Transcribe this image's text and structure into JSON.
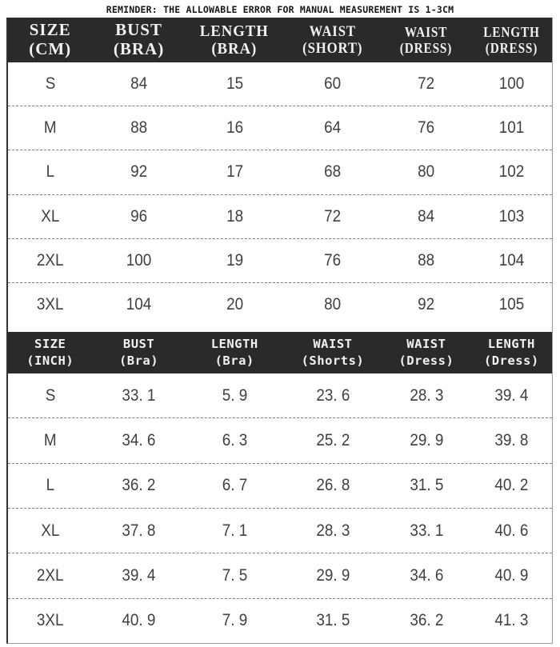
{
  "reminder": "REMINDER: THE ALLOWABLE ERROR FOR MANUAL MEASUREMENT IS 1-3CM",
  "colors": {
    "header_bg": "#2a2a2a",
    "header_text": "#f2f2f2",
    "body_text": "#404040",
    "divider_dash": "#7d7d7d",
    "border": "#9a9a9a",
    "background": "#ffffff"
  },
  "tables": [
    {
      "id": "cm",
      "columns": [
        {
          "line1": "SIZE",
          "line2": "(CM)"
        },
        {
          "line1": "BUST",
          "line2": "(BRA)"
        },
        {
          "line1": "LENGTH",
          "line2": "(BRA)"
        },
        {
          "line1": "WAIST",
          "line2": "(SHORT)"
        },
        {
          "line1": "WAIST",
          "line2": "(DRESS)"
        },
        {
          "line1": "LENGTH",
          "line2": "(DRESS)"
        }
      ],
      "rows": [
        [
          "S",
          "84",
          "15",
          "60",
          "72",
          "100"
        ],
        [
          "M",
          "88",
          "16",
          "64",
          "76",
          "101"
        ],
        [
          "L",
          "92",
          "17",
          "68",
          "80",
          "102"
        ],
        [
          "XL",
          "96",
          "18",
          "72",
          "84",
          "103"
        ],
        [
          "2XL",
          "100",
          "19",
          "76",
          "88",
          "104"
        ],
        [
          "3XL",
          "104",
          "20",
          "80",
          "92",
          "105"
        ]
      ]
    },
    {
      "id": "inch",
      "columns": [
        {
          "line1": "SIZE",
          "line2": "(INCH)"
        },
        {
          "line1": "BUST",
          "line2": "(Bra)"
        },
        {
          "line1": "LENGTH",
          "line2": "(Bra)"
        },
        {
          "line1": "WAIST",
          "line2": "(Shorts)"
        },
        {
          "line1": "WAIST",
          "line2": "(Dress)"
        },
        {
          "line1": "LENGTH",
          "line2": "(Dress)"
        }
      ],
      "rows": [
        [
          "S",
          "33. 1",
          "5. 9",
          "23. 6",
          "28. 3",
          "39. 4"
        ],
        [
          "M",
          "34. 6",
          "6. 3",
          "25. 2",
          "29. 9",
          "39. 8"
        ],
        [
          "L",
          "36. 2",
          "6. 7",
          "26. 8",
          "31. 5",
          "40. 2"
        ],
        [
          "XL",
          "37. 8",
          "7. 1",
          "28. 3",
          "33. 1",
          "40. 6"
        ],
        [
          "2XL",
          "39. 4",
          "7. 5",
          "29. 9",
          "34. 6",
          "40. 9"
        ],
        [
          "3XL",
          "40. 9",
          "7. 9",
          "31. 5",
          "36. 2",
          "41. 3"
        ]
      ]
    }
  ],
  "chart_data": [
    {
      "type": "table",
      "title": "Size chart (CM)",
      "columns": [
        "SIZE (CM)",
        "BUST (BRA)",
        "LENGTH (BRA)",
        "WAIST (SHORT)",
        "WAIST (DRESS)",
        "LENGTH (DRESS)"
      ],
      "rows": [
        [
          "S",
          84,
          15,
          60,
          72,
          100
        ],
        [
          "M",
          88,
          16,
          64,
          76,
          101
        ],
        [
          "L",
          92,
          17,
          68,
          80,
          102
        ],
        [
          "XL",
          96,
          18,
          72,
          84,
          103
        ],
        [
          "2XL",
          100,
          19,
          76,
          88,
          104
        ],
        [
          "3XL",
          104,
          20,
          80,
          92,
          105
        ]
      ]
    },
    {
      "type": "table",
      "title": "Size chart (INCH)",
      "columns": [
        "SIZE (INCH)",
        "BUST (Bra)",
        "LENGTH (Bra)",
        "WAIST (Shorts)",
        "WAIST (Dress)",
        "LENGTH (Dress)"
      ],
      "rows": [
        [
          "S",
          33.1,
          5.9,
          23.6,
          28.3,
          39.4
        ],
        [
          "M",
          34.6,
          6.3,
          25.2,
          29.9,
          39.8
        ],
        [
          "L",
          36.2,
          6.7,
          26.8,
          31.5,
          40.2
        ],
        [
          "XL",
          37.8,
          7.1,
          28.3,
          33.1,
          40.6
        ],
        [
          "2XL",
          39.4,
          7.5,
          29.9,
          34.6,
          40.9
        ],
        [
          "3XL",
          40.9,
          7.9,
          31.5,
          36.2,
          41.3
        ]
      ]
    }
  ]
}
